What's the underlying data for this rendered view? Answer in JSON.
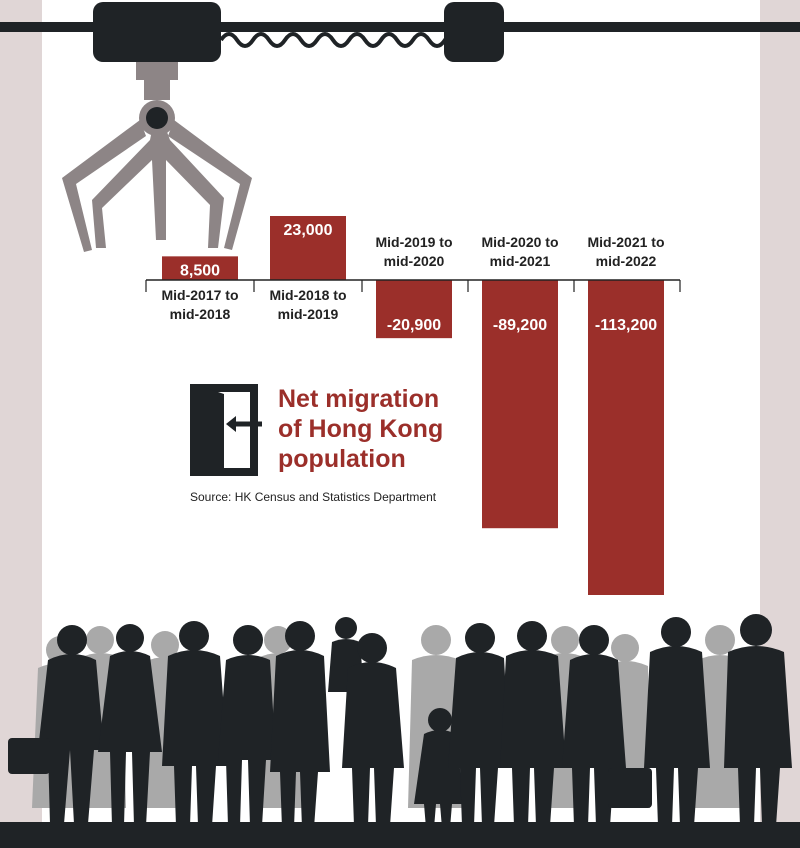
{
  "title_lines": [
    "Net migration",
    "of Hong Kong",
    "population"
  ],
  "source": "Source: HK Census and Statistics Department",
  "colors": {
    "bar": "#9b2f2a",
    "dark": "#1f2326",
    "claw": "#8d8586",
    "side": "#e0d6d6"
  },
  "icons": [
    "claw-machine-icon",
    "door-exit-icon",
    "crowd-silhouette-icon"
  ],
  "chart_data": {
    "type": "bar",
    "categories": [
      [
        "Mid-2017 to",
        "mid-2018"
      ],
      [
        "Mid-2018 to",
        "mid-2019"
      ],
      [
        "Mid-2019 to",
        "mid-2020"
      ],
      [
        "Mid-2020 to",
        "mid-2021"
      ],
      [
        "Mid-2021 to",
        "mid-2022"
      ]
    ],
    "values": [
      8500,
      23000,
      -20900,
      -89200,
      -113200
    ],
    "value_labels": [
      "8,500",
      "23,000",
      "-20,900",
      "-89,200",
      "-113,200"
    ],
    "title": "Net migration of Hong Kong population",
    "grid": false
  }
}
